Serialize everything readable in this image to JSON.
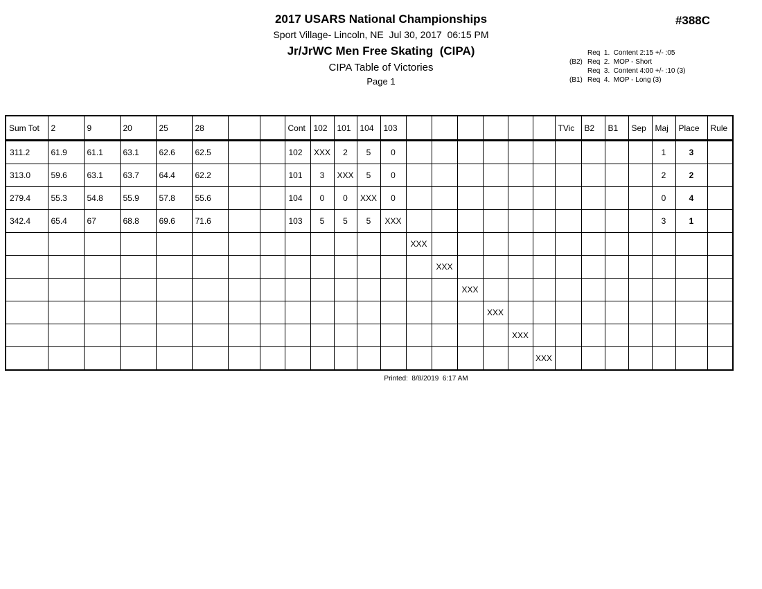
{
  "page": {
    "title": "2017 USARS National Championships",
    "venue_datetime": "Sport Village- Lincoln, NE  Jul 30, 2017  06:15 PM",
    "event_name": "Jr/JrWC Men Free Skating  (CIPA)",
    "report_name": "CIPA Table of Victories",
    "page_label": "Page 1",
    "event_number": "#388C",
    "printed_label": "Printed:  8/8/2019  6:17 AM"
  },
  "requirements": [
    {
      "prefix": "",
      "text": "Req  1.  Content 2:15 +/- :05"
    },
    {
      "prefix": "(B2)",
      "text": "Req  2.  MOP - Short"
    },
    {
      "prefix": "",
      "text": "Req  3.  Content 4:00 +/- :10 (3)"
    },
    {
      "prefix": "(B1)",
      "text": "Req  4.  MOP - Long (3)"
    }
  ],
  "colors": {
    "text": "#000000",
    "background": "#ffffff",
    "grid": "#000000"
  },
  "table": {
    "columns": [
      "Sum Tot",
      "2",
      "9",
      "20",
      "25",
      "28",
      "",
      "",
      "Cont",
      "102",
      "101",
      "104",
      "103",
      "",
      "",
      "",
      "",
      "",
      "",
      "TVic",
      "B2",
      "B1",
      "Sep",
      "Maj",
      "Place",
      "Rule"
    ],
    "rows": [
      [
        "311.2",
        "61.9",
        "61.1",
        "63.1",
        "62.6",
        "62.5",
        "",
        "",
        "102",
        "XXX",
        "2",
        "5",
        "0",
        "",
        "",
        "",
        "",
        "",
        "",
        "",
        "",
        "",
        "",
        "1",
        "3",
        ""
      ],
      [
        "313.0",
        "59.6",
        "63.1",
        "63.7",
        "64.4",
        "62.2",
        "",
        "",
        "101",
        "3",
        "XXX",
        "5",
        "0",
        "",
        "",
        "",
        "",
        "",
        "",
        "",
        "",
        "",
        "",
        "2",
        "2",
        ""
      ],
      [
        "279.4",
        "55.3",
        "54.8",
        "55.9",
        "57.8",
        "55.6",
        "",
        "",
        "104",
        "0",
        "0",
        "XXX",
        "0",
        "",
        "",
        "",
        "",
        "",
        "",
        "",
        "",
        "",
        "",
        "0",
        "4",
        ""
      ],
      [
        "342.4",
        "65.4",
        "67",
        "68.8",
        "69.6",
        "71.6",
        "",
        "",
        "103",
        "5",
        "5",
        "5",
        "XXX",
        "",
        "",
        "",
        "",
        "",
        "",
        "",
        "",
        "",
        "",
        "3",
        "1",
        ""
      ],
      [
        "",
        "",
        "",
        "",
        "",
        "",
        "",
        "",
        "",
        "",
        "",
        "",
        "",
        "XXX",
        "",
        "",
        "",
        "",
        "",
        "",
        "",
        "",
        "",
        "",
        "",
        ""
      ],
      [
        "",
        "",
        "",
        "",
        "",
        "",
        "",
        "",
        "",
        "",
        "",
        "",
        "",
        "",
        "XXX",
        "",
        "",
        "",
        "",
        "",
        "",
        "",
        "",
        "",
        "",
        ""
      ],
      [
        "",
        "",
        "",
        "",
        "",
        "",
        "",
        "",
        "",
        "",
        "",
        "",
        "",
        "",
        "",
        "XXX",
        "",
        "",
        "",
        "",
        "",
        "",
        "",
        "",
        "",
        ""
      ],
      [
        "",
        "",
        "",
        "",
        "",
        "",
        "",
        "",
        "",
        "",
        "",
        "",
        "",
        "",
        "",
        "",
        "XXX",
        "",
        "",
        "",
        "",
        "",
        "",
        "",
        "",
        ""
      ],
      [
        "",
        "",
        "",
        "",
        "",
        "",
        "",
        "",
        "",
        "",
        "",
        "",
        "",
        "",
        "",
        "",
        "",
        "XXX",
        "",
        "",
        "",
        "",
        "",
        "",
        "",
        ""
      ],
      [
        "",
        "",
        "",
        "",
        "",
        "",
        "",
        "",
        "",
        "",
        "",
        "",
        "",
        "",
        "",
        "",
        "",
        "",
        "XXX",
        "",
        "",
        "",
        "",
        "",
        "",
        ""
      ]
    ]
  }
}
